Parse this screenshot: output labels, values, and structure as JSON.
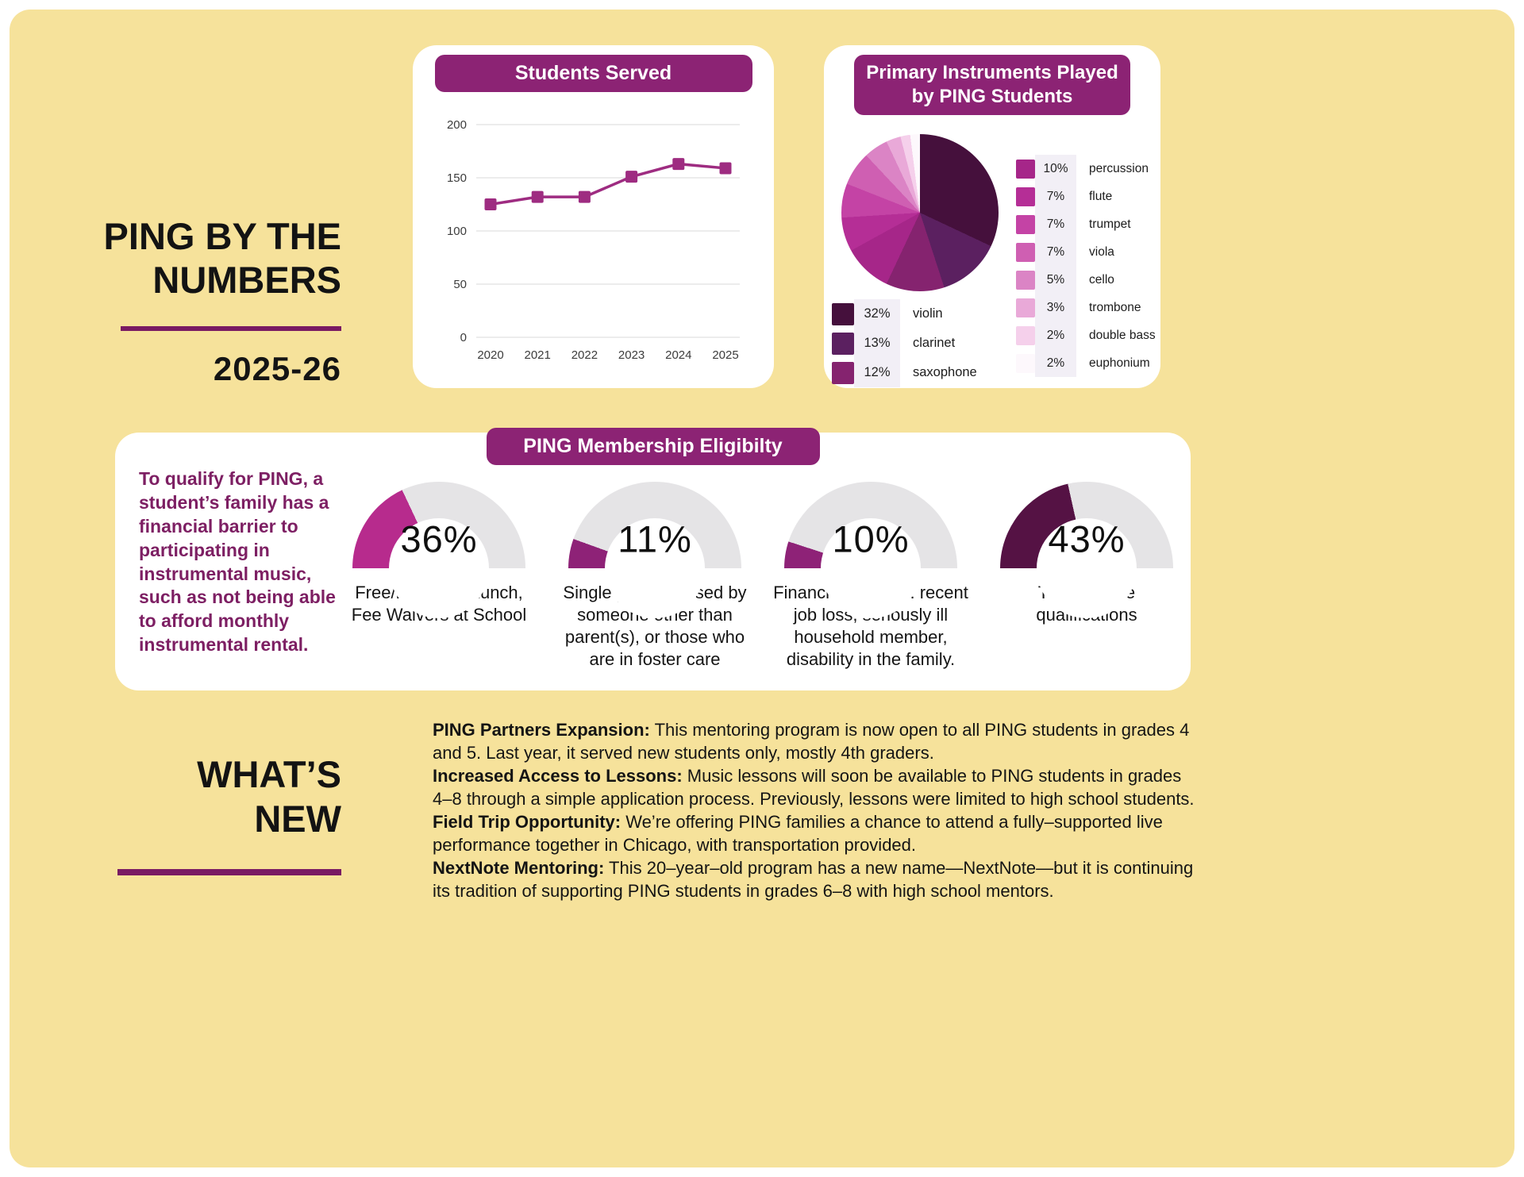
{
  "header": {
    "title": "PING BY THE\nNUMBERS",
    "year": "2025-26"
  },
  "chart_data": [
    {
      "type": "line",
      "title": "Students Served",
      "x": [
        "2020",
        "2021",
        "2022",
        "2023",
        "2024",
        "2025"
      ],
      "values": [
        125,
        132,
        132,
        151,
        163,
        159
      ],
      "ylim": [
        0,
        200
      ],
      "yticks": [
        0,
        50,
        100,
        150,
        200
      ],
      "line_color": "#9E2C81",
      "grid": true,
      "legend_position": "none"
    },
    {
      "type": "pie",
      "title": "Primary Instruments  Played\nby PING Students",
      "labels": [
        "violin",
        "clarinet",
        "saxophone",
        "percussion",
        "flute",
        "trumpet",
        "viola",
        "cello",
        "trombone",
        "double bass",
        "euphonium"
      ],
      "values": [
        32,
        13,
        12,
        10,
        7,
        7,
        7,
        5,
        3,
        2,
        2
      ],
      "colors": [
        "#45103C",
        "#5B2060",
        "#85236F",
        "#A62689",
        "#B52E96",
        "#C443A5",
        "#CF5FB2",
        "#DB84C5",
        "#E9A9D8",
        "#F5D0EB",
        "#FDF8FC"
      ],
      "legend_left_count": 3,
      "start_angle_deg": 0
    },
    {
      "type": "gauge",
      "title": "PING Membership Eligibilty",
      "track_color": "#E5E4E6",
      "items": [
        {
          "pct": 36,
          "color": "#B72B8D",
          "label": "Free/Reduced Lunch, Fee Waivers at School"
        },
        {
          "pct": 11,
          "color": "#8E2277",
          "label": "Single parent, raised by someone other than parent(s), or those who are in foster care"
        },
        {
          "pct": 10,
          "color": "#8E2277",
          "label": "Financial stressor: recent job loss, seriously ill household member, disability in the family."
        },
        {
          "pct": 43,
          "color": "#551244",
          "label": "Two or more qualifications"
        }
      ]
    }
  ],
  "membership": {
    "intro": "To qualify for PING, a student’s family has a financial barrier to participating in instrumental music, such as not being able to afford monthly instrumental rental."
  },
  "whats_new": {
    "title": "WHAT’S\nNEW",
    "items": [
      {
        "lead": "PING Partners Expansion:",
        "text": " This mentoring program is now open to all PING students in grades 4 and 5. Last year, it served new students only, mostly 4th graders."
      },
      {
        "lead": "Increased Access to Lessons:",
        "text": " Music lessons will soon be available to PING students in grades 4–8 through a simple application process. Previously, lessons were limited to high school students."
      },
      {
        "lead": "Field Trip Opportunity:",
        "text": " We’re offering PING families a chance to attend a fully–supported live performance together in Chicago, with transportation provided."
      },
      {
        "lead": "NextNote Mentoring:",
        "text": " This 20–year–old program has a new name—NextNote—but it is continuing its tradition of supporting PING students in grades 6–8 with high school mentors."
      }
    ]
  },
  "colors": {
    "background": "#F6E29B",
    "banner": "#8C2374",
    "rule": "#791A63",
    "intro_text": "#7D1F63"
  }
}
